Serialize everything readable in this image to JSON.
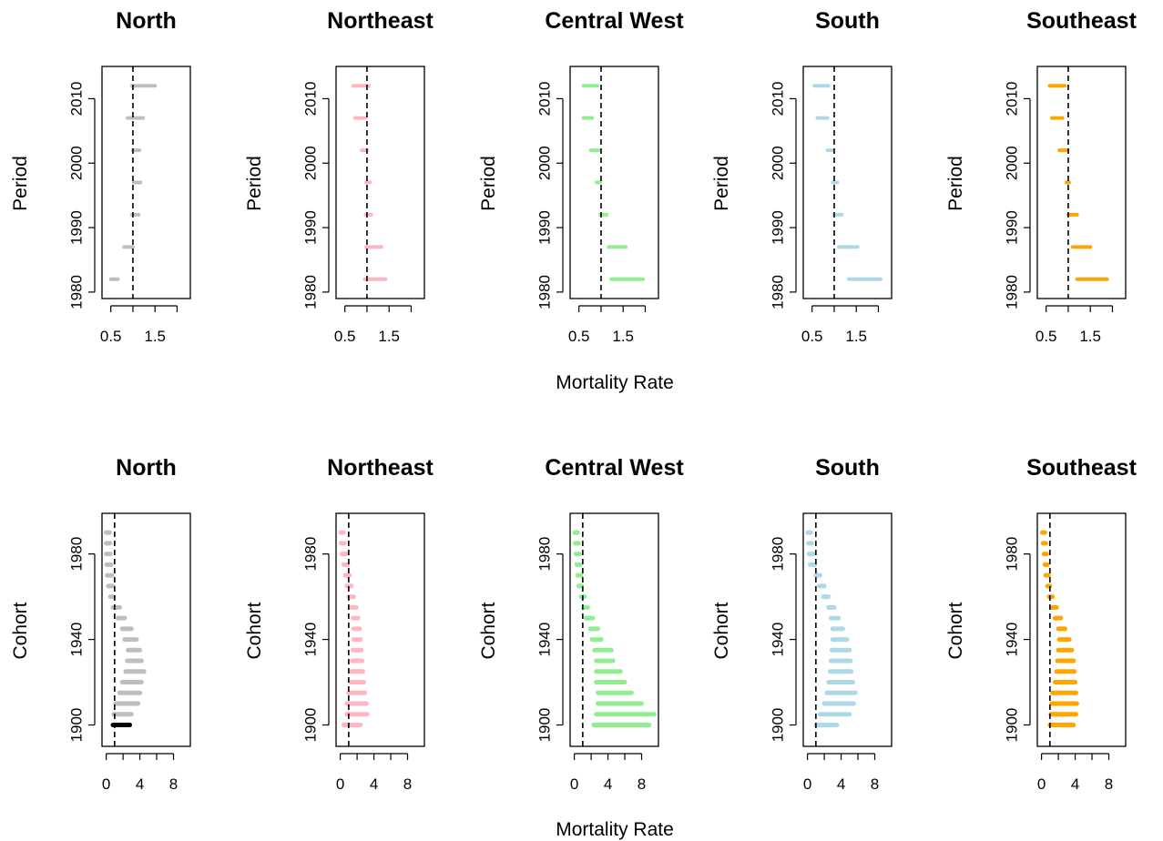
{
  "figure": {
    "row_labels": {
      "period": "Period",
      "cohort": "Cohort"
    },
    "xlabel": "Mortality Rate"
  },
  "chart_data": [
    {
      "type": "interval",
      "row": "period",
      "title": "North",
      "color": "#bebebe",
      "xlim": [
        0.3,
        2.3
      ],
      "ylim": [
        1979,
        2015
      ],
      "xticks": [
        0.5,
        1,
        1.5,
        2
      ],
      "xtick_labels": [
        "0.5",
        "",
        "1.5",
        ""
      ],
      "yticks": [
        1980,
        1990,
        2000,
        2010
      ],
      "ylabel": "Period",
      "reference": 1,
      "intervals": [
        {
          "y": 1982,
          "low": 0.5,
          "high": 0.66
        },
        {
          "y": 1987,
          "low": 0.8,
          "high": 1.0
        },
        {
          "y": 1992,
          "low": 0.98,
          "high": 1.13
        },
        {
          "y": 1997,
          "low": 1.02,
          "high": 1.17
        },
        {
          "y": 2002,
          "low": 1.0,
          "high": 1.15
        },
        {
          "y": 2007,
          "low": 0.88,
          "high": 1.23
        },
        {
          "y": 2012,
          "low": 0.98,
          "high": 1.5
        }
      ]
    },
    {
      "type": "interval",
      "row": "period",
      "title": "Northeast",
      "color": "#ffb6c1",
      "xlim": [
        0.3,
        2.3
      ],
      "ylim": [
        1979,
        2015
      ],
      "xticks": [
        0.5,
        1,
        1.5,
        2
      ],
      "xtick_labels": [
        "0.5",
        "",
        "1.5",
        ""
      ],
      "yticks": [
        1980,
        1990,
        2000,
        2010
      ],
      "ylabel": "Period",
      "reference": 1,
      "intervals": [
        {
          "y": 1982,
          "low": 0.95,
          "high": 1.42
        },
        {
          "y": 1987,
          "low": 0.98,
          "high": 1.33
        },
        {
          "y": 1992,
          "low": 0.97,
          "high": 1.1
        },
        {
          "y": 1997,
          "low": 0.98,
          "high": 1.07
        },
        {
          "y": 2002,
          "low": 0.88,
          "high": 1.0
        },
        {
          "y": 2007,
          "low": 0.73,
          "high": 0.97
        },
        {
          "y": 2012,
          "low": 0.69,
          "high": 1.04
        }
      ]
    },
    {
      "type": "interval",
      "row": "period",
      "title": "Central West",
      "color": "#90ee90",
      "xlim": [
        0.3,
        2.3
      ],
      "ylim": [
        1979,
        2015
      ],
      "xticks": [
        0.5,
        1,
        1.5,
        2
      ],
      "xtick_labels": [
        "0.5",
        "",
        "1.5",
        ""
      ],
      "yticks": [
        1980,
        1990,
        2000,
        2010
      ],
      "ylabel": "Period",
      "reference": 1,
      "intervals": [
        {
          "y": 1982,
          "low": 1.23,
          "high": 1.95
        },
        {
          "y": 1987,
          "low": 1.17,
          "high": 1.56
        },
        {
          "y": 1992,
          "low": 0.98,
          "high": 1.13
        },
        {
          "y": 1997,
          "low": 0.9,
          "high": 0.98
        },
        {
          "y": 2002,
          "low": 0.77,
          "high": 0.94
        },
        {
          "y": 2007,
          "low": 0.6,
          "high": 0.8
        },
        {
          "y": 2012,
          "low": 0.6,
          "high": 0.92
        }
      ]
    },
    {
      "type": "interval",
      "row": "period",
      "title": "South",
      "color": "#add8e6",
      "xlim": [
        0.3,
        2.3
      ],
      "ylim": [
        1979,
        2015
      ],
      "xticks": [
        0.5,
        1,
        1.5,
        2
      ],
      "xtick_labels": [
        "0.5",
        "",
        "1.5",
        ""
      ],
      "yticks": [
        1980,
        1990,
        2000,
        2010
      ],
      "ylabel": "Period",
      "reference": 1,
      "intervals": [
        {
          "y": 1982,
          "low": 1.33,
          "high": 2.05
        },
        {
          "y": 1987,
          "low": 1.1,
          "high": 1.53
        },
        {
          "y": 1992,
          "low": 1.0,
          "high": 1.17
        },
        {
          "y": 1997,
          "low": 0.97,
          "high": 1.07
        },
        {
          "y": 2002,
          "low": 0.85,
          "high": 0.98
        },
        {
          "y": 2007,
          "low": 0.62,
          "high": 0.85
        },
        {
          "y": 2012,
          "low": 0.55,
          "high": 0.87
        }
      ]
    },
    {
      "type": "interval",
      "row": "period",
      "title": "Southeast",
      "color": "#ffa500",
      "xlim": [
        0.3,
        2.3
      ],
      "ylim": [
        1979,
        2015
      ],
      "xticks": [
        0.5,
        1,
        1.5,
        2
      ],
      "xtick_labels": [
        "0.5",
        "",
        "1.5",
        ""
      ],
      "yticks": [
        1980,
        1990,
        2000,
        2010
      ],
      "ylabel": "Period",
      "reference": 1,
      "intervals": [
        {
          "y": 1982,
          "low": 1.2,
          "high": 1.88
        },
        {
          "y": 1987,
          "low": 1.1,
          "high": 1.5
        },
        {
          "y": 1992,
          "low": 1.0,
          "high": 1.2
        },
        {
          "y": 1997,
          "low": 0.96,
          "high": 1.02
        },
        {
          "y": 2002,
          "low": 0.8,
          "high": 0.98
        },
        {
          "y": 2007,
          "low": 0.63,
          "high": 0.87
        },
        {
          "y": 2012,
          "low": 0.58,
          "high": 0.92
        }
      ]
    },
    {
      "type": "interval",
      "row": "cohort",
      "title": "North",
      "color": "#bebebe",
      "highlight_color": "#000000",
      "xlim": [
        -0.5,
        10
      ],
      "ylim": [
        1890,
        1999
      ],
      "xticks": [
        0,
        2,
        4,
        6,
        8
      ],
      "xtick_labels": [
        "0",
        "",
        "4",
        "",
        "8"
      ],
      "yticks": [
        1900,
        1940,
        1980
      ],
      "ylabel": "Cohort",
      "reference": 1,
      "intervals": [
        {
          "y": 1900,
          "low": 0.8,
          "high": 2.8,
          "highlight": true
        },
        {
          "y": 1905,
          "low": 0.9,
          "high": 3.0
        },
        {
          "y": 1910,
          "low": 1.1,
          "high": 3.8
        },
        {
          "y": 1915,
          "low": 1.6,
          "high": 4.0
        },
        {
          "y": 1920,
          "low": 1.9,
          "high": 4.2
        },
        {
          "y": 1925,
          "low": 2.3,
          "high": 4.5
        },
        {
          "y": 1930,
          "low": 2.5,
          "high": 4.2
        },
        {
          "y": 1935,
          "low": 2.6,
          "high": 4.0
        },
        {
          "y": 1940,
          "low": 2.2,
          "high": 3.6
        },
        {
          "y": 1945,
          "low": 1.9,
          "high": 3.0
        },
        {
          "y": 1950,
          "low": 1.4,
          "high": 2.2
        },
        {
          "y": 1955,
          "low": 0.8,
          "high": 1.6
        },
        {
          "y": 1960,
          "low": 0.5,
          "high": 0.9
        },
        {
          "y": 1965,
          "low": 0.25,
          "high": 0.8
        },
        {
          "y": 1970,
          "low": 0.1,
          "high": 0.7
        },
        {
          "y": 1975,
          "low": 0.05,
          "high": 0.6
        },
        {
          "y": 1980,
          "low": 0.0,
          "high": 0.5
        },
        {
          "y": 1985,
          "low": 0.0,
          "high": 0.45
        },
        {
          "y": 1990,
          "low": 0.0,
          "high": 0.4
        }
      ]
    },
    {
      "type": "interval",
      "row": "cohort",
      "title": "Northeast",
      "color": "#ffb6c1",
      "xlim": [
        -0.5,
        10
      ],
      "ylim": [
        1890,
        1999
      ],
      "xticks": [
        0,
        2,
        4,
        6,
        8
      ],
      "xtick_labels": [
        "0",
        "",
        "4",
        "",
        "8"
      ],
      "yticks": [
        1900,
        1940,
        1980
      ],
      "ylabel": "Cohort",
      "reference": 1,
      "intervals": [
        {
          "y": 1900,
          "low": 0.4,
          "high": 2.4
        },
        {
          "y": 1905,
          "low": 0.8,
          "high": 3.2
        },
        {
          "y": 1910,
          "low": 0.8,
          "high": 3.1
        },
        {
          "y": 1915,
          "low": 1.0,
          "high": 2.9
        },
        {
          "y": 1920,
          "low": 1.2,
          "high": 2.8
        },
        {
          "y": 1925,
          "low": 1.3,
          "high": 2.7
        },
        {
          "y": 1930,
          "low": 1.4,
          "high": 2.6
        },
        {
          "y": 1935,
          "low": 1.5,
          "high": 2.5
        },
        {
          "y": 1940,
          "low": 1.6,
          "high": 2.4
        },
        {
          "y": 1945,
          "low": 1.6,
          "high": 2.3
        },
        {
          "y": 1950,
          "low": 1.5,
          "high": 2.1
        },
        {
          "y": 1955,
          "low": 1.3,
          "high": 1.9
        },
        {
          "y": 1960,
          "low": 1.0,
          "high": 1.6
        },
        {
          "y": 1965,
          "low": 0.8,
          "high": 1.3
        },
        {
          "y": 1970,
          "low": 0.6,
          "high": 1.1
        },
        {
          "y": 1975,
          "low": 0.4,
          "high": 0.9
        },
        {
          "y": 1980,
          "low": 0.2,
          "high": 0.7
        },
        {
          "y": 1985,
          "low": 0.1,
          "high": 0.5
        },
        {
          "y": 1990,
          "low": 0.05,
          "high": 0.4
        }
      ]
    },
    {
      "type": "interval",
      "row": "cohort",
      "title": "Central West",
      "color": "#90ee90",
      "xlim": [
        -0.5,
        10
      ],
      "ylim": [
        1890,
        1999
      ],
      "xticks": [
        0,
        2,
        4,
        6,
        8
      ],
      "xtick_labels": [
        "0",
        "",
        "4",
        "",
        "8"
      ],
      "yticks": [
        1900,
        1940,
        1980
      ],
      "ylabel": "Cohort",
      "reference": 1,
      "intervals": [
        {
          "y": 1900,
          "low": 2.3,
          "high": 8.9
        },
        {
          "y": 1905,
          "low": 2.6,
          "high": 9.5
        },
        {
          "y": 1910,
          "low": 2.8,
          "high": 8.0
        },
        {
          "y": 1915,
          "low": 2.8,
          "high": 6.8
        },
        {
          "y": 1920,
          "low": 2.6,
          "high": 6.0
        },
        {
          "y": 1925,
          "low": 2.6,
          "high": 5.5
        },
        {
          "y": 1930,
          "low": 2.6,
          "high": 4.6
        },
        {
          "y": 1935,
          "low": 2.4,
          "high": 4.4
        },
        {
          "y": 1940,
          "low": 2.1,
          "high": 3.2
        },
        {
          "y": 1945,
          "low": 1.9,
          "high": 2.8
        },
        {
          "y": 1950,
          "low": 1.4,
          "high": 2.2
        },
        {
          "y": 1955,
          "low": 1.1,
          "high": 1.6
        },
        {
          "y": 1960,
          "low": 0.8,
          "high": 1.2
        },
        {
          "y": 1965,
          "low": 0.5,
          "high": 0.9
        },
        {
          "y": 1970,
          "low": 0.4,
          "high": 0.8
        },
        {
          "y": 1975,
          "low": 0.3,
          "high": 0.7
        },
        {
          "y": 1980,
          "low": 0.2,
          "high": 0.6
        },
        {
          "y": 1985,
          "low": 0.1,
          "high": 0.5
        },
        {
          "y": 1990,
          "low": 0.05,
          "high": 0.4
        }
      ]
    },
    {
      "type": "interval",
      "row": "cohort",
      "title": "South",
      "color": "#add8e6",
      "xlim": [
        -0.5,
        10
      ],
      "ylim": [
        1890,
        1999
      ],
      "xticks": [
        0,
        2,
        4,
        6,
        8
      ],
      "xtick_labels": [
        "0",
        "",
        "4",
        "",
        "8"
      ],
      "yticks": [
        1900,
        1940,
        1980
      ],
      "ylabel": "Cohort",
      "reference": 1,
      "intervals": [
        {
          "y": 1900,
          "low": 1.0,
          "high": 3.5
        },
        {
          "y": 1905,
          "low": 1.5,
          "high": 5.0
        },
        {
          "y": 1910,
          "low": 2.0,
          "high": 5.5
        },
        {
          "y": 1915,
          "low": 2.3,
          "high": 5.7
        },
        {
          "y": 1920,
          "low": 2.5,
          "high": 5.4
        },
        {
          "y": 1925,
          "low": 2.7,
          "high": 5.2
        },
        {
          "y": 1930,
          "low": 2.8,
          "high": 5.1
        },
        {
          "y": 1935,
          "low": 2.9,
          "high": 5.0
        },
        {
          "y": 1940,
          "low": 3.0,
          "high": 4.7
        },
        {
          "y": 1945,
          "low": 3.0,
          "high": 4.2
        },
        {
          "y": 1950,
          "low": 2.8,
          "high": 3.7
        },
        {
          "y": 1955,
          "low": 2.5,
          "high": 3.2
        },
        {
          "y": 1960,
          "low": 1.9,
          "high": 2.5
        },
        {
          "y": 1965,
          "low": 1.4,
          "high": 2.0
        },
        {
          "y": 1970,
          "low": 1.0,
          "high": 1.5
        },
        {
          "y": 1975,
          "low": 0.3,
          "high": 0.9
        },
        {
          "y": 1980,
          "low": 0.2,
          "high": 0.7
        },
        {
          "y": 1985,
          "low": 0.1,
          "high": 0.5
        },
        {
          "y": 1990,
          "low": 0.05,
          "high": 0.4
        }
      ]
    },
    {
      "type": "interval",
      "row": "cohort",
      "title": "Southeast",
      "color": "#ffa500",
      "xlim": [
        -0.5,
        10
      ],
      "ylim": [
        1890,
        1999
      ],
      "xticks": [
        0,
        2,
        4,
        6,
        8
      ],
      "xtick_labels": [
        "0",
        "",
        "4",
        "",
        "8"
      ],
      "yticks": [
        1900,
        1940,
        1980
      ],
      "ylabel": "Cohort",
      "reference": 1,
      "intervals": [
        {
          "y": 1900,
          "low": 1.0,
          "high": 3.8
        },
        {
          "y": 1905,
          "low": 1.1,
          "high": 4.1
        },
        {
          "y": 1910,
          "low": 1.2,
          "high": 4.2
        },
        {
          "y": 1915,
          "low": 1.3,
          "high": 4.1
        },
        {
          "y": 1920,
          "low": 1.6,
          "high": 4.0
        },
        {
          "y": 1925,
          "low": 1.8,
          "high": 3.9
        },
        {
          "y": 1930,
          "low": 1.9,
          "high": 3.8
        },
        {
          "y": 1935,
          "low": 2.0,
          "high": 3.6
        },
        {
          "y": 1940,
          "low": 2.1,
          "high": 3.3
        },
        {
          "y": 1945,
          "low": 2.0,
          "high": 2.8
        },
        {
          "y": 1950,
          "low": 1.6,
          "high": 2.3
        },
        {
          "y": 1955,
          "low": 1.3,
          "high": 1.8
        },
        {
          "y": 1960,
          "low": 0.9,
          "high": 1.3
        },
        {
          "y": 1965,
          "low": 0.7,
          "high": 1.0
        },
        {
          "y": 1970,
          "low": 0.5,
          "high": 0.8
        },
        {
          "y": 1975,
          "low": 0.4,
          "high": 0.7
        },
        {
          "y": 1980,
          "low": 0.3,
          "high": 0.6
        },
        {
          "y": 1985,
          "low": 0.2,
          "high": 0.5
        },
        {
          "y": 1990,
          "low": 0.1,
          "high": 0.4
        }
      ]
    }
  ]
}
